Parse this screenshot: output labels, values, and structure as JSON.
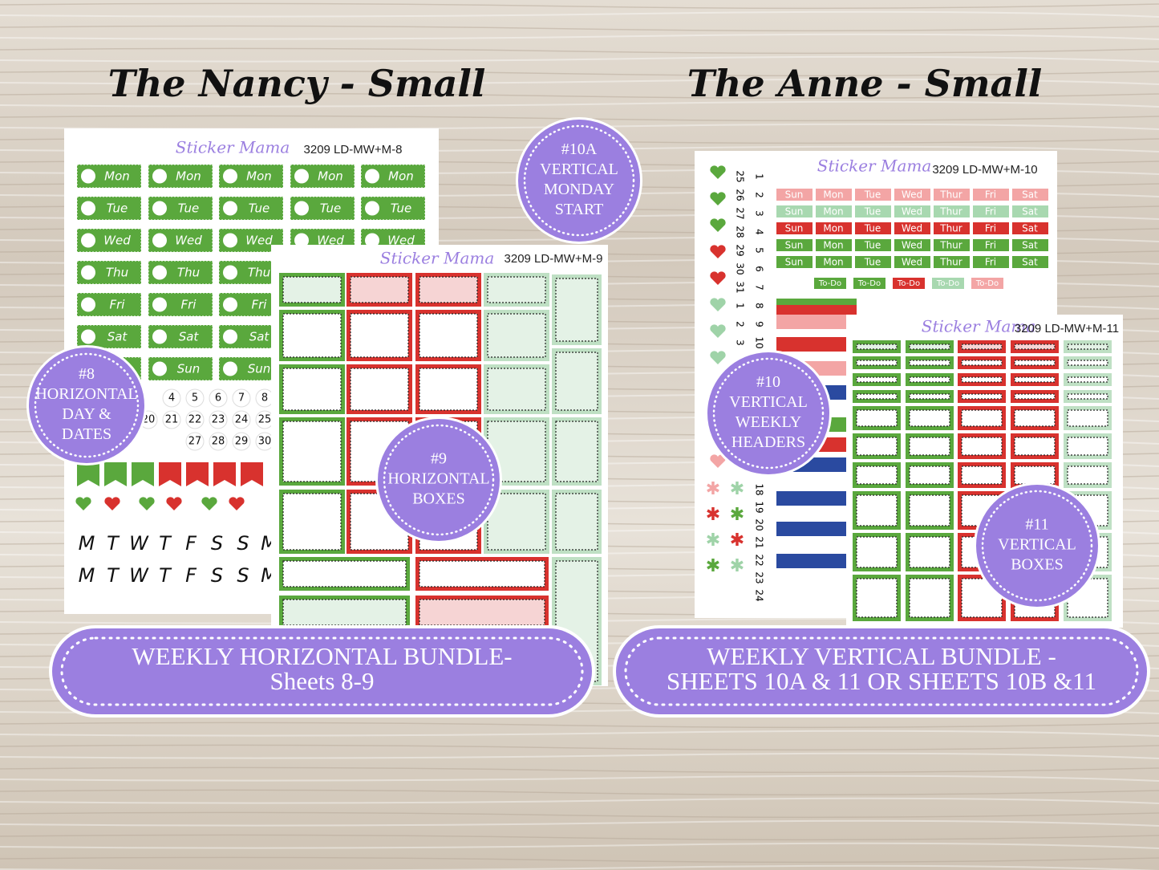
{
  "titles": [
    "The Nancy - Small",
    "The Anne - Small"
  ],
  "sheet8": {
    "brand": "Sticker Mama",
    "code": "3209 LD-MW+M-8",
    "days": [
      "Mon",
      "Tue",
      "Wed",
      "Thu",
      "Fri",
      "Sat",
      "Sun"
    ],
    "date_rows": [
      [
        "4",
        "5",
        "6",
        "7",
        "8"
      ],
      [
        "20",
        "21",
        "22",
        "23",
        "24",
        "25"
      ],
      [
        "27",
        "28",
        "29",
        "30"
      ]
    ],
    "letters": [
      "M",
      "T",
      "W",
      "T",
      "F",
      "S",
      "S",
      "M"
    ]
  },
  "sheet9": {
    "brand": "Sticker Mama",
    "code": "3209 LD-MW+M-9"
  },
  "sheet10": {
    "brand": "Sticker Mama",
    "code": "3209 LD-MW+M-10",
    "days": [
      "Sun",
      "Mon",
      "Tue",
      "Wed",
      "Thur",
      "Fri",
      "Sat"
    ],
    "todo": "To-Do",
    "numbers_a": [
      "25",
      "26",
      "27",
      "28",
      "29",
      "30",
      "31",
      "1",
      "2",
      "3"
    ],
    "numbers_b": [
      "1",
      "2",
      "3",
      "4",
      "5",
      "6",
      "7",
      "8",
      "9",
      "10"
    ],
    "numbers_c": [
      "18",
      "19",
      "20",
      "21",
      "22",
      "23",
      "24"
    ]
  },
  "sheet11": {
    "brand": "Sticker Mama",
    "code": "3209 LD-MW+M-11"
  },
  "badges": [
    {
      "lines": [
        "#10A",
        "VERTICAL",
        "MONDAY",
        "START"
      ]
    },
    {
      "lines": [
        "#8",
        "HORIZONTAL",
        "DAY &",
        "DATES"
      ]
    },
    {
      "lines": [
        "#9",
        "HORIZONTAL",
        "BOXES"
      ]
    },
    {
      "lines": [
        "#10",
        "VERTICAL",
        "WEEKLY",
        "HEADERS"
      ]
    },
    {
      "lines": [
        "#11",
        "VERTICAL",
        "BOXES"
      ]
    }
  ],
  "banners": [
    {
      "lines": [
        "WEEKLY HORIZONTAL BUNDLE-",
        "Sheets 8-9"
      ]
    },
    {
      "lines": [
        "WEEKLY VERTICAL BUNDLE -",
        "SHEETS 10A & 11 OR  SHEETS 10B &11"
      ]
    }
  ]
}
